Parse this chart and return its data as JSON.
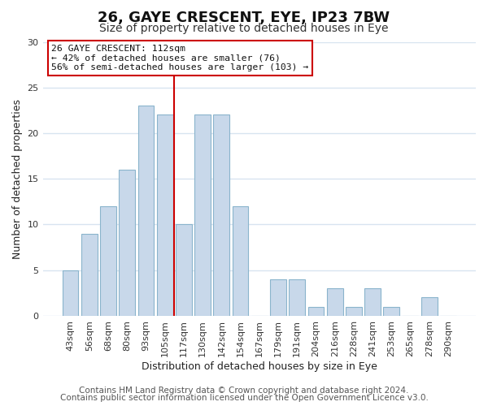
{
  "title": "26, GAYE CRESCENT, EYE, IP23 7BW",
  "subtitle": "Size of property relative to detached houses in Eye",
  "xlabel": "Distribution of detached houses by size in Eye",
  "ylabel": "Number of detached properties",
  "bar_labels": [
    "43sqm",
    "56sqm",
    "68sqm",
    "80sqm",
    "93sqm",
    "105sqm",
    "117sqm",
    "130sqm",
    "142sqm",
    "154sqm",
    "167sqm",
    "179sqm",
    "191sqm",
    "204sqm",
    "216sqm",
    "228sqm",
    "241sqm",
    "253sqm",
    "265sqm",
    "278sqm",
    "290sqm"
  ],
  "bar_values": [
    5,
    9,
    12,
    16,
    23,
    22,
    10,
    22,
    22,
    12,
    0,
    4,
    4,
    1,
    3,
    1,
    3,
    1,
    0,
    2,
    0
  ],
  "bar_color": "#c8d8ea",
  "bar_edgecolor": "#8ab4cc",
  "ylim": [
    0,
    30
  ],
  "yticks": [
    0,
    5,
    10,
    15,
    20,
    25,
    30
  ],
  "vline_x": 5.5,
  "vline_color": "#cc0000",
  "annotation_title": "26 GAYE CRESCENT: 112sqm",
  "annotation_line1": "← 42% of detached houses are smaller (76)",
  "annotation_line2": "56% of semi-detached houses are larger (103) →",
  "annotation_box_edgecolor": "#cc0000",
  "footer1": "Contains HM Land Registry data © Crown copyright and database right 2024.",
  "footer2": "Contains public sector information licensed under the Open Government Licence v3.0.",
  "background_color": "#ffffff",
  "plot_background_color": "#ffffff",
  "grid_color": "#d8e4f0",
  "title_fontsize": 13,
  "subtitle_fontsize": 10,
  "axis_label_fontsize": 9,
  "tick_fontsize": 8,
  "footer_fontsize": 7.5
}
